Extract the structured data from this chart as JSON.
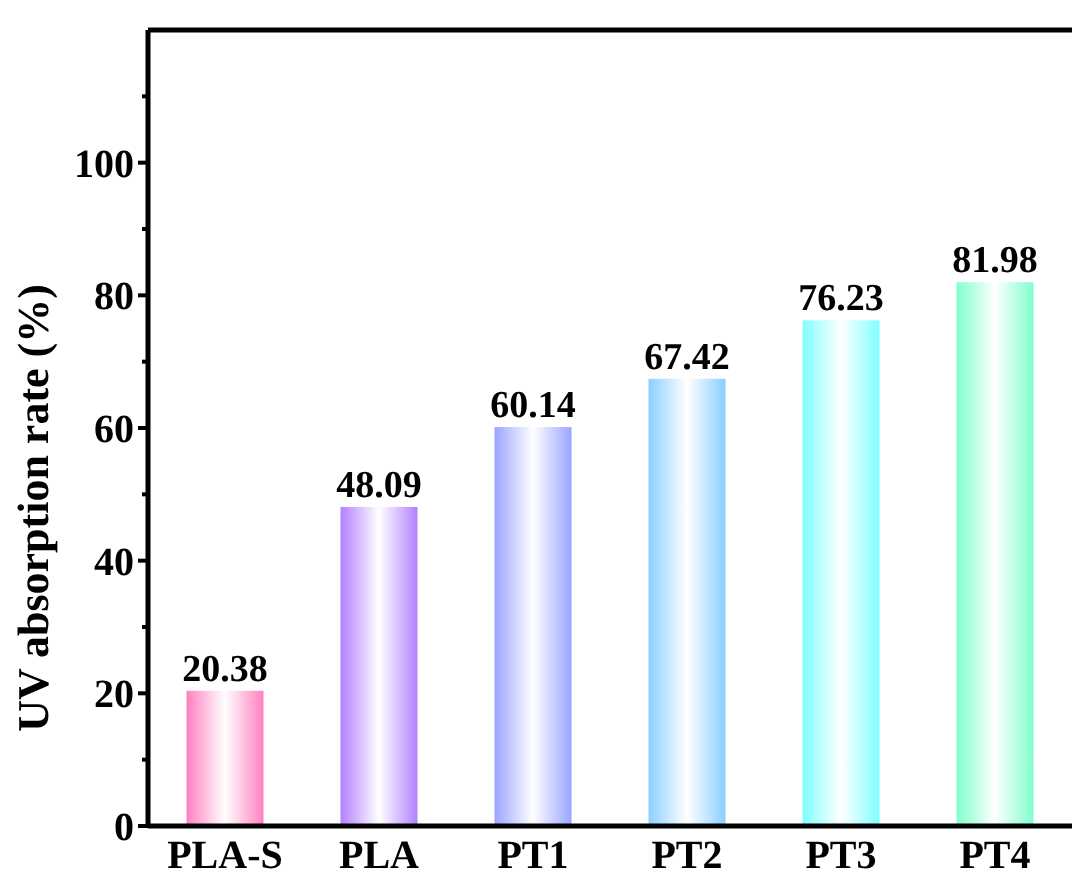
{
  "chart_data": {
    "type": "bar",
    "ylabel": "UV absorption rate (%)",
    "categories": [
      "PLA-S",
      "PLA",
      "PT1",
      "PT2",
      "PT3",
      "PT4"
    ],
    "values": [
      20.38,
      48.09,
      60.14,
      67.42,
      76.23,
      81.98
    ],
    "colors": [
      "#ff80c0",
      "#b380ff",
      "#9aa4ff",
      "#8ccfff",
      "#80ffff",
      "#80ffcc"
    ],
    "ylim": [
      0,
      120
    ],
    "yticks": [
      0,
      {
        "value": 10,
        "label": null
      },
      20,
      {
        "value": 30,
        "label": null
      },
      40,
      {
        "value": 50,
        "label": null
      },
      60,
      {
        "value": 70,
        "label": null
      },
      80,
      {
        "value": 90,
        "label": null
      },
      100,
      {
        "value": 110,
        "label": null
      }
    ],
    "data_labels": true,
    "grid": false
  }
}
